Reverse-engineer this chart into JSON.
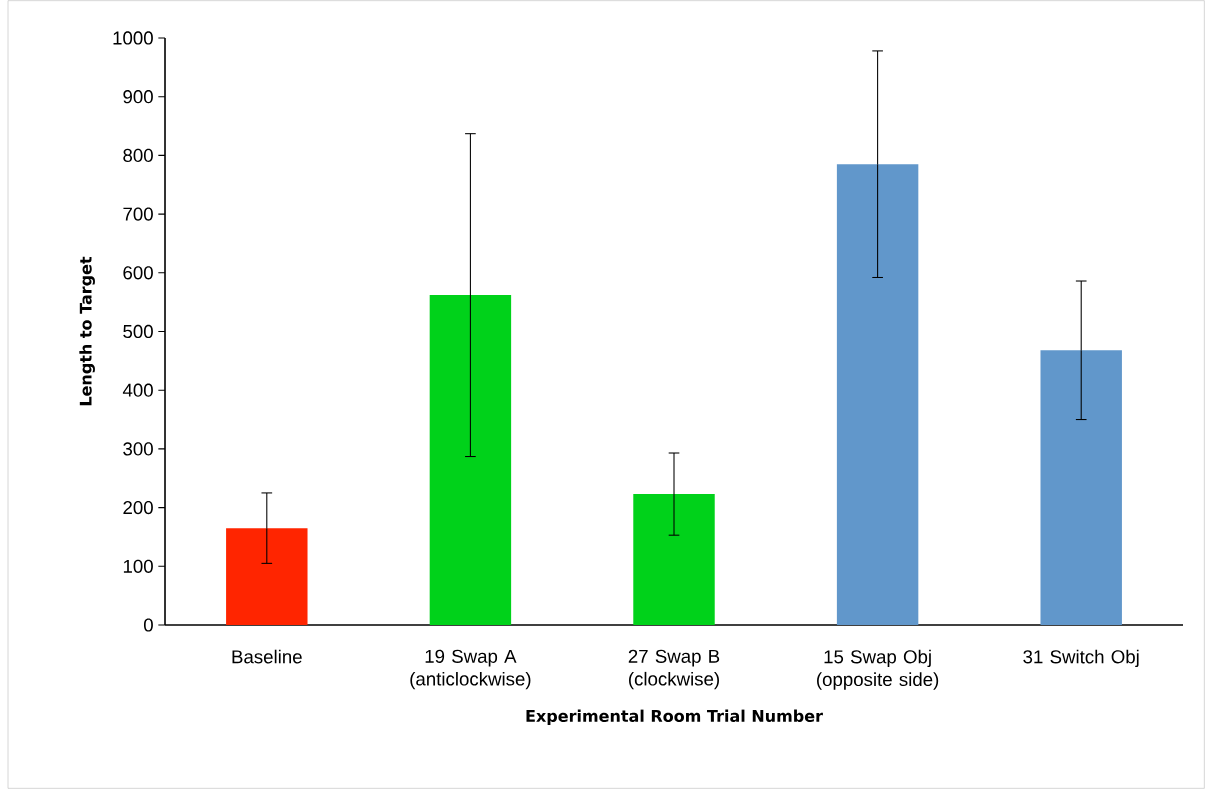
{
  "chart_data": {
    "type": "bar",
    "xlabel": "Experimental Room Trial Number",
    "ylabel": "Length to Target",
    "categories": [
      "Baseline",
      "19 Swap A (anticlockwise)",
      "27 Swap B (clockwise)",
      "15 Swap Obj (opposite side)",
      "31 Switch Obj"
    ],
    "values": [
      165,
      562,
      223,
      785,
      468
    ],
    "errors": [
      60,
      275,
      70,
      193,
      118
    ],
    "colors": [
      "#ff2500",
      "#00d21a",
      "#00d21a",
      "#6197cb",
      "#6197cb"
    ],
    "ylim": [
      0,
      1000
    ],
    "yticks": [
      0,
      100,
      200,
      300,
      400,
      500,
      600,
      700,
      800,
      900,
      1000
    ],
    "grid": false
  }
}
